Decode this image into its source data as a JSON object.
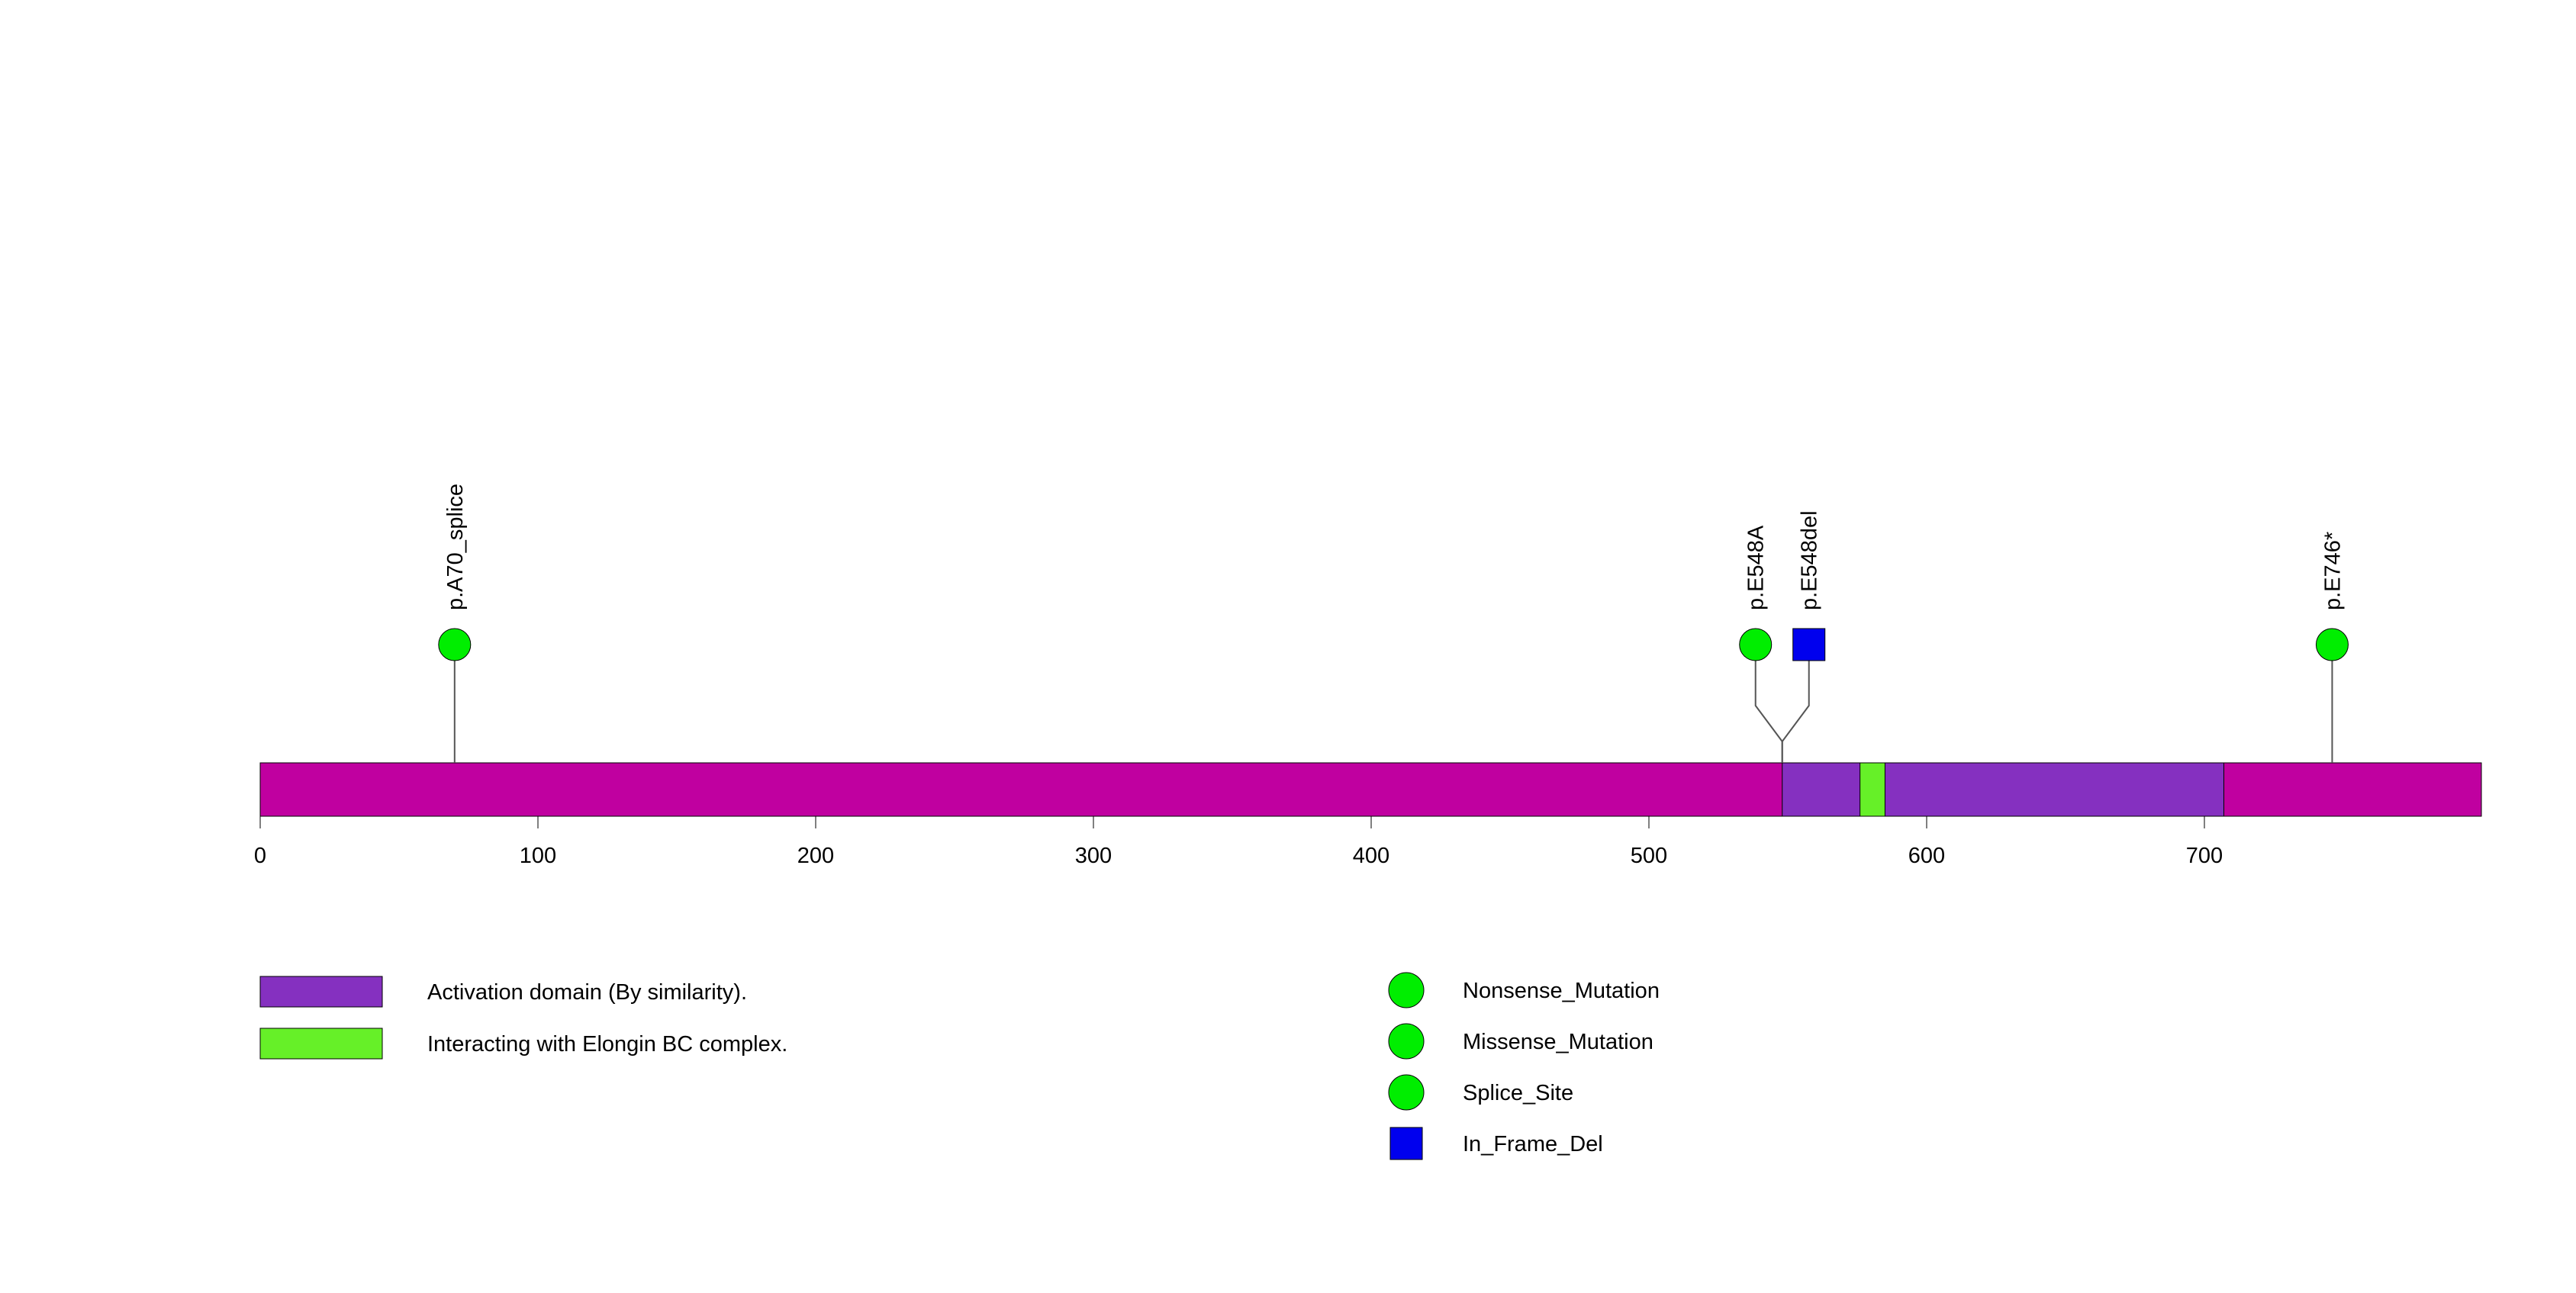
{
  "protein": {
    "length": 800,
    "base_color": "#C000A0",
    "domains": [
      {
        "name": "Activation domain (By similarity).",
        "start": 548,
        "end": 707,
        "color": "#8530C0"
      },
      {
        "name": "Interacting with Elongin BC complex.",
        "start": 576,
        "end": 585,
        "color": "#66F028"
      }
    ]
  },
  "axis": {
    "ticks": [
      0,
      100,
      200,
      300,
      400,
      500,
      600,
      700
    ],
    "tick_labels": [
      "0",
      "100",
      "200",
      "300",
      "400",
      "500",
      "600",
      "700"
    ]
  },
  "mutations": [
    {
      "label": "p.A70_splice",
      "position": 70,
      "type": "Splice_Site",
      "shape": "circle",
      "color": "#00EE00"
    },
    {
      "label": "p.E548A",
      "position": 548,
      "type": "Missense_Mutation",
      "shape": "circle",
      "color": "#00EE00"
    },
    {
      "label": "p.E548del",
      "position": 548,
      "type": "In_Frame_Del",
      "shape": "square",
      "color": "#0000EE"
    },
    {
      "label": "p.E746*",
      "position": 746,
      "type": "Nonsense_Mutation",
      "shape": "circle",
      "color": "#00EE00"
    }
  ],
  "domain_legend": [
    {
      "label": "Activation domain (By similarity).",
      "color": "#8530C0"
    },
    {
      "label": "Interacting with Elongin BC complex.",
      "color": "#66F028"
    }
  ],
  "mutation_legend": [
    {
      "label": "Nonsense_Mutation",
      "shape": "circle",
      "color": "#00EE00"
    },
    {
      "label": "Missense_Mutation",
      "shape": "circle",
      "color": "#00EE00"
    },
    {
      "label": "Splice_Site",
      "shape": "circle",
      "color": "#00EE00"
    },
    {
      "label": "In_Frame_Del",
      "shape": "square",
      "color": "#0000EE"
    }
  ]
}
